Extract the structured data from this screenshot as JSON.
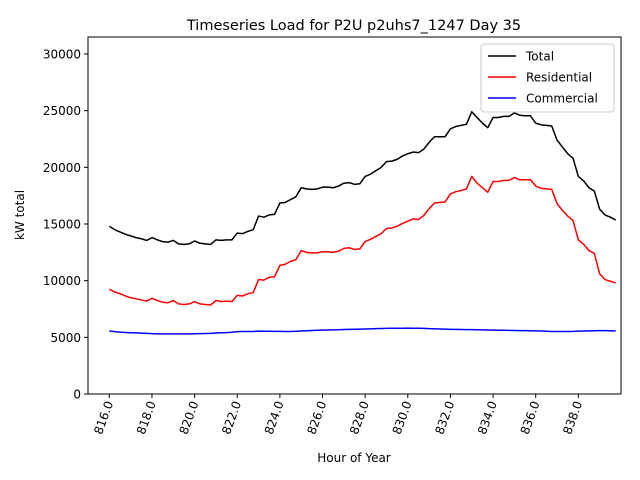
{
  "chart_data": {
    "type": "line",
    "title": "Timeseries Load for P2U p2uhs7_1247  Day 35",
    "xlabel": "Hour of Year",
    "ylabel": "kW total",
    "xlim": [
      815.0,
      840.0
    ],
    "ylim": [
      0,
      31500
    ],
    "x_ticks": [
      816.0,
      818.0,
      820.0,
      822.0,
      824.0,
      826.0,
      828.0,
      830.0,
      832.0,
      834.0,
      836.0,
      838.0
    ],
    "x_tick_labels": [
      "816.0",
      "818.0",
      "820.0",
      "822.0",
      "824.0",
      "826.0",
      "828.0",
      "830.0",
      "832.0",
      "834.0",
      "836.0",
      "838.0"
    ],
    "y_ticks": [
      0,
      5000,
      10000,
      15000,
      20000,
      25000,
      30000
    ],
    "y_tick_labels": [
      "0",
      "5000",
      "10000",
      "15000",
      "20000",
      "25000",
      "30000"
    ],
    "legend_position": "top-right",
    "x_start": 816.0,
    "x_step": 0.25,
    "series": [
      {
        "name": "Total",
        "color": "#000000",
        "values": [
          14800,
          14500,
          14300,
          14100,
          13950,
          13800,
          13700,
          13550,
          13800,
          13600,
          13450,
          13400,
          13550,
          13250,
          13200,
          13250,
          13500,
          13300,
          13250,
          13200,
          13600,
          13550,
          13600,
          13600,
          14200,
          14150,
          14350,
          14500,
          15700,
          15600,
          15800,
          15850,
          16850,
          16900,
          17150,
          17400,
          18200,
          18100,
          18050,
          18100,
          18250,
          18250,
          18200,
          18350,
          18600,
          18650,
          18500,
          18550,
          19200,
          19400,
          19700,
          20000,
          20500,
          20550,
          20700,
          21000,
          21200,
          21350,
          21300,
          21600,
          22200,
          22700,
          22700,
          22700,
          23400,
          23600,
          23700,
          23800,
          24900,
          24400,
          23900,
          23500,
          24400,
          24400,
          24500,
          24500,
          24800,
          24600,
          24550,
          24550,
          23900,
          23750,
          23700,
          23650,
          22400,
          21800,
          21200,
          20800,
          19200,
          18800,
          18200,
          17900,
          16300,
          15800,
          15600,
          15350
        ]
      },
      {
        "name": "Residential",
        "color": "#ff0000",
        "values": [
          9250,
          9000,
          8850,
          8650,
          8500,
          8400,
          8300,
          8200,
          8450,
          8250,
          8100,
          8050,
          8250,
          7950,
          7900,
          7950,
          8150,
          7950,
          7900,
          7850,
          8250,
          8150,
          8200,
          8150,
          8700,
          8650,
          8850,
          8950,
          10100,
          10050,
          10300,
          10350,
          11350,
          11450,
          11700,
          11850,
          12650,
          12500,
          12450,
          12450,
          12550,
          12550,
          12500,
          12600,
          12850,
          12900,
          12750,
          12800,
          13450,
          13650,
          13900,
          14150,
          14600,
          14650,
          14800,
          15050,
          15250,
          15450,
          15400,
          15750,
          16350,
          16850,
          16900,
          16950,
          17650,
          17850,
          17950,
          18100,
          19200,
          18600,
          18200,
          17800,
          18750,
          18750,
          18850,
          18850,
          19100,
          18900,
          18900,
          18900,
          18350,
          18150,
          18100,
          18050,
          16800,
          16200,
          15700,
          15300,
          13600,
          13200,
          12650,
          12400,
          10600,
          10100,
          9950,
          9800
        ]
      },
      {
        "name": "Commercial",
        "color": "#0000ff",
        "values": [
          5560,
          5500,
          5460,
          5430,
          5410,
          5390,
          5370,
          5350,
          5330,
          5310,
          5300,
          5300,
          5300,
          5300,
          5300,
          5310,
          5320,
          5330,
          5340,
          5350,
          5380,
          5400,
          5420,
          5450,
          5500,
          5510,
          5520,
          5520,
          5550,
          5540,
          5540,
          5530,
          5530,
          5510,
          5520,
          5540,
          5560,
          5580,
          5600,
          5620,
          5640,
          5650,
          5660,
          5670,
          5690,
          5700,
          5710,
          5720,
          5740,
          5750,
          5770,
          5780,
          5790,
          5800,
          5800,
          5800,
          5810,
          5800,
          5800,
          5790,
          5770,
          5760,
          5740,
          5720,
          5700,
          5700,
          5690,
          5680,
          5680,
          5670,
          5660,
          5650,
          5640,
          5630,
          5620,
          5610,
          5600,
          5590,
          5590,
          5580,
          5570,
          5560,
          5540,
          5520,
          5510,
          5510,
          5520,
          5530,
          5550,
          5560,
          5570,
          5580,
          5590,
          5590,
          5580,
          5560
        ]
      }
    ]
  }
}
